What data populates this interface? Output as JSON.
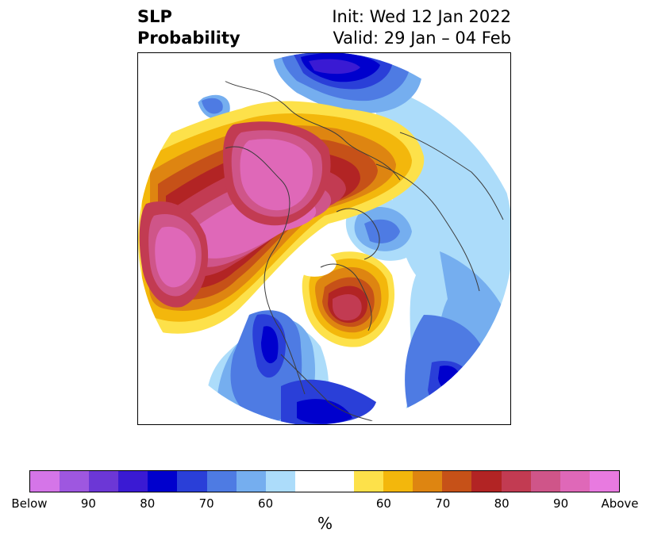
{
  "title": {
    "left_line1": "SLP",
    "left_line2": "Probability",
    "right_line1": "Init: Wed 12 Jan 2022",
    "right_line2": "Valid: 29 Jan – 04 Feb"
  },
  "colorbar": {
    "colors": [
      "#d575e8",
      "#9e57e0",
      "#6c37d6",
      "#3a1ad3",
      "#0000cd",
      "#2a3fd8",
      "#4e7be3",
      "#75aeef",
      "#acdcfa",
      "#ffffff",
      "#ffffff",
      "#fde14a",
      "#f3b70c",
      "#de8511",
      "#c65118",
      "#b22424",
      "#c23b52",
      "#cf5589",
      "#df68b8",
      "#e87ae0"
    ],
    "tick_labels": [
      "Below",
      "90",
      "80",
      "70",
      "60",
      "",
      "60",
      "70",
      "80",
      "90",
      "Above"
    ],
    "unit_label": "%"
  },
  "map": {
    "projection": "north-polar-stereographic",
    "variable": "sea level pressure tercile probability"
  }
}
